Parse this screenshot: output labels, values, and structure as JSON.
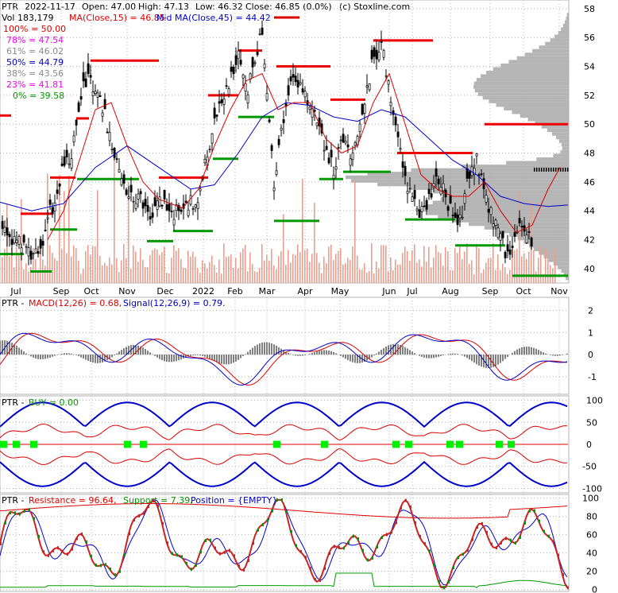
{
  "header": {
    "ticker": "PTR",
    "date": "2022-11-17",
    "open": "Open: 47.00",
    "high": "High: 47.13",
    "low": "Low: 46.32",
    "close": "Close: 46.85 (0.0%)",
    "source": "(c) Stoxline.com",
    "vol": "Vol 183,179",
    "ma15": "MA(Close,15) = 46.85",
    "ma45": "Mid MA(Close,45) = 44.42"
  },
  "colors": {
    "price": "#000000",
    "ma15": "#dd0000",
    "ma45": "#0000cc",
    "fib": "#ff00ff",
    "resistance": "#ee0000",
    "support": "#009900",
    "volume": "#e8a090",
    "vprofile": "#a8a8a8",
    "grid": "#b4b4b4",
    "macd": "#0000cc",
    "signal": "#dd0000",
    "hist": "#000000",
    "buy": "#00ee00",
    "band": "#0000cc",
    "res": "#dd0000",
    "sup": "#009900"
  },
  "fib_levels": [
    {
      "label": "100% = 50.00",
      "color": "#dd0000"
    },
    {
      "label": "78% = 47.54",
      "color": "#ff00ff"
    },
    {
      "label": "61% = 46.02",
      "color": "#aaaaaa"
    },
    {
      "label": "50% = 44.79",
      "color": "#0000cc"
    },
    {
      "label": "38% = 43.56",
      "color": "#aaaaaa"
    },
    {
      "label": "23% = 41.81",
      "color": "#ff00ff"
    },
    {
      "label": "0% = 39.58",
      "color": "#009900"
    }
  ],
  "panels": {
    "macd": {
      "prefix": "PTR -",
      "macd": "MACD(12,26) = 0.68,",
      "signal": "Signal(12,26,9) = 0.79."
    },
    "buy": {
      "prefix": "PTR -",
      "buy": "BUY = 0.00"
    },
    "stoch": {
      "prefix": "PTR -",
      "resistance": "Resistance = 96.64,",
      "support": "Support = 7.39,",
      "position": "Position = {EMPTY}"
    }
  },
  "chart_data": [
    {
      "type": "candlestick",
      "x_labels": [
        "Jul",
        "Sep",
        "Oct",
        "Nov",
        "Dec",
        "2022",
        "Feb",
        "Mar",
        "Apr",
        "May",
        "Jun",
        "Jul",
        "Aug",
        "Sep",
        "Oct",
        "Nov"
      ],
      "y_ticks": [
        40,
        42,
        44,
        46,
        48,
        50,
        52,
        54,
        56,
        58
      ],
      "ylim": [
        39.0,
        58.6
      ],
      "close_path": [
        [
          0,
          43.1
        ],
        [
          10,
          42.2
        ],
        [
          20,
          41.5
        ],
        [
          30,
          42.0
        ],
        [
          40,
          40.8
        ],
        [
          50,
          41.2
        ],
        [
          60,
          43.5
        ],
        [
          70,
          44.8
        ],
        [
          80,
          47.0
        ],
        [
          90,
          48.0
        ],
        [
          100,
          51.5
        ],
        [
          110,
          53.5
        ],
        [
          120,
          52.5
        ],
        [
          130,
          51.0
        ],
        [
          140,
          49.0
        ],
        [
          150,
          47.0
        ],
        [
          160,
          45.5
        ],
        [
          170,
          45.0
        ],
        [
          180,
          44.5
        ],
        [
          190,
          43.0
        ],
        [
          200,
          45.0
        ],
        [
          210,
          44.5
        ],
        [
          220,
          43.8
        ],
        [
          230,
          44.0
        ],
        [
          240,
          44.5
        ],
        [
          250,
          45.0
        ],
        [
          260,
          47.5
        ],
        [
          270,
          50.5
        ],
        [
          280,
          51.5
        ],
        [
          290,
          53.0
        ],
        [
          300,
          55.0
        ],
        [
          310,
          52.0
        ],
        [
          320,
          54.0
        ],
        [
          330,
          56.5
        ],
        [
          340,
          50.0
        ],
        [
          345,
          46.0
        ],
        [
          350,
          48.0
        ],
        [
          360,
          51.5
        ],
        [
          370,
          53.0
        ],
        [
          380,
          52.5
        ],
        [
          390,
          51.5
        ],
        [
          400,
          50.0
        ],
        [
          410,
          48.0
        ],
        [
          420,
          47.0
        ],
        [
          430,
          48.5
        ],
        [
          440,
          48.0
        ],
        [
          450,
          49.0
        ],
        [
          460,
          52.0
        ],
        [
          470,
          54.5
        ],
        [
          480,
          55.5
        ],
        [
          490,
          52.5
        ],
        [
          500,
          49.0
        ],
        [
          510,
          46.0
        ],
        [
          520,
          44.5
        ],
        [
          530,
          44.0
        ],
        [
          540,
          45.0
        ],
        [
          550,
          46.5
        ],
        [
          560,
          45.0
        ],
        [
          570,
          43.5
        ],
        [
          580,
          43.5
        ],
        [
          590,
          46.5
        ],
        [
          600,
          47.5
        ],
        [
          610,
          45.0
        ],
        [
          620,
          43.5
        ],
        [
          630,
          42.0
        ],
        [
          640,
          40.5
        ],
        [
          650,
          42.5
        ],
        [
          660,
          43.0
        ],
        [
          670,
          41.5
        ]
      ],
      "ma15_path": [
        [
          60,
          42.0
        ],
        [
          80,
          44.0
        ],
        [
          100,
          47.5
        ],
        [
          120,
          51.0
        ],
        [
          140,
          51.5
        ],
        [
          160,
          48.5
        ],
        [
          180,
          46.0
        ],
        [
          200,
          44.8
        ],
        [
          230,
          44.2
        ],
        [
          250,
          45.5
        ],
        [
          270,
          48.5
        ],
        [
          290,
          51.0
        ],
        [
          310,
          53.0
        ],
        [
          330,
          53.5
        ],
        [
          350,
          51.0
        ],
        [
          370,
          51.5
        ],
        [
          390,
          51.5
        ],
        [
          410,
          49.0
        ],
        [
          430,
          48.0
        ],
        [
          450,
          48.5
        ],
        [
          470,
          51.5
        ],
        [
          490,
          53.5
        ],
        [
          510,
          50.0
        ],
        [
          530,
          46.5
        ],
        [
          550,
          45.5
        ],
        [
          570,
          45.0
        ],
        [
          590,
          45.0
        ],
        [
          610,
          46.0
        ],
        [
          630,
          44.0
        ],
        [
          650,
          42.5
        ],
        [
          670,
          43.0
        ],
        [
          690,
          45.5
        ],
        [
          705,
          47.0
        ]
      ],
      "ma45_path": [
        [
          0,
          44.6
        ],
        [
          40,
          44.0
        ],
        [
          80,
          44.5
        ],
        [
          120,
          47.0
        ],
        [
          160,
          48.5
        ],
        [
          200,
          47.0
        ],
        [
          240,
          45.5
        ],
        [
          270,
          45.8
        ],
        [
          300,
          48.0
        ],
        [
          330,
          50.5
        ],
        [
          360,
          51.5
        ],
        [
          390,
          51.3
        ],
        [
          420,
          50.5
        ],
        [
          450,
          50.2
        ],
        [
          480,
          51.0
        ],
        [
          510,
          50.5
        ],
        [
          540,
          49.0
        ],
        [
          570,
          47.5
        ],
        [
          600,
          46.5
        ],
        [
          630,
          45.0
        ],
        [
          660,
          44.5
        ],
        [
          690,
          44.3
        ],
        [
          715,
          44.4
        ]
      ],
      "resistance_segments": [
        [
          0,
          14,
          50.6
        ],
        [
          26,
          66,
          43.8
        ],
        [
          63,
          95,
          46.3
        ],
        [
          96,
          112,
          50.4
        ],
        [
          114,
          200,
          54.4
        ],
        [
          200,
          262,
          46.3
        ],
        [
          262,
          300,
          52.0
        ],
        [
          300,
          330,
          55.1
        ],
        [
          348,
          416,
          54.0
        ],
        [
          416,
          460,
          51.7
        ],
        [
          470,
          545,
          55.8
        ],
        [
          500,
          595,
          48.0
        ],
        [
          610,
          715,
          50.0
        ]
      ],
      "support_segments": [
        [
          0,
          30,
          41.0
        ],
        [
          38,
          65,
          39.8
        ],
        [
          63,
          97,
          42.7
        ],
        [
          97,
          175,
          46.2
        ],
        [
          185,
          218,
          41.9
        ],
        [
          218,
          268,
          42.6
        ],
        [
          268,
          300,
          47.6
        ],
        [
          300,
          345,
          50.5
        ],
        [
          345,
          402,
          43.3
        ],
        [
          402,
          432,
          46.2
        ],
        [
          432,
          492,
          46.7
        ],
        [
          510,
          573,
          43.4
        ],
        [
          573,
          636,
          41.6
        ],
        [
          645,
          715,
          39.5
        ]
      ],
      "last_close": 46.85
    },
    {
      "type": "line",
      "name": "MACD",
      "ylim": [
        -1.8,
        2.6
      ],
      "y_ticks": [
        -1,
        0,
        1,
        2
      ],
      "last_macd": 0.68,
      "last_signal": 0.79
    },
    {
      "type": "line",
      "name": "BUY",
      "ylim": [
        -110,
        110
      ],
      "y_ticks": [
        -100,
        -50,
        0,
        50,
        100
      ],
      "last_buy": 0.0
    },
    {
      "type": "line",
      "name": "Resistance/Support",
      "ylim": [
        -2,
        104
      ],
      "y_ticks": [
        0,
        20,
        40,
        60,
        80,
        100
      ],
      "last_resistance": 96.64,
      "last_support": 7.39
    }
  ]
}
